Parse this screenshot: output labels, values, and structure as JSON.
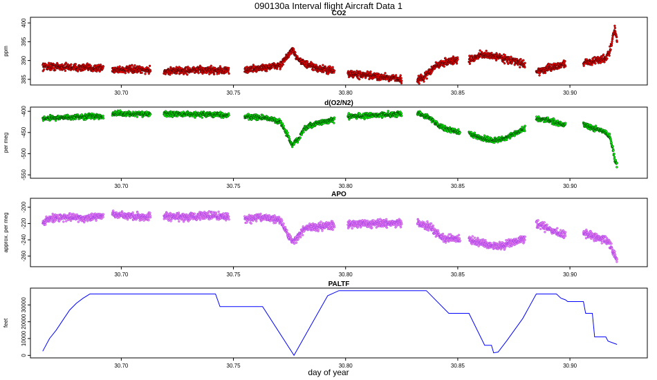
{
  "title": "090130a   Interval flight Aircraft Data 1",
  "xlabel": "day of year",
  "chart_data": [
    {
      "type": "scatter",
      "title": "CO2",
      "ylabel": "ppm",
      "xlim": [
        30.6595,
        30.9345
      ],
      "ylim": [
        383.5,
        401.5
      ],
      "xticks": [
        "30.70",
        "30.75",
        "30.80",
        "30.85",
        "30.90"
      ],
      "yticks": [
        "385",
        "390",
        "395",
        "400"
      ],
      "fill_color": "#ff0000",
      "edge_color": "#000000",
      "noise": 0.8,
      "segments": [
        {
          "x": [
            30.665,
            30.668,
            30.675,
            30.685,
            30.692
          ],
          "y": [
            388.5,
            388.4,
            388.3,
            388.0,
            388.0
          ]
        },
        {
          "x": [
            30.696,
            30.705,
            30.713
          ],
          "y": [
            387.6,
            387.6,
            387.4
          ]
        },
        {
          "x": [
            30.719,
            30.73,
            30.74,
            30.748
          ],
          "y": [
            387.2,
            387.4,
            387.5,
            387.3
          ]
        },
        {
          "x": [
            30.755,
            30.765,
            30.771,
            30.774,
            30.776,
            30.779,
            30.782,
            30.787,
            30.795
          ],
          "y": [
            387.5,
            388.2,
            388.8,
            391.0,
            392.8,
            390.5,
            389.0,
            388.0,
            387.2
          ]
        },
        {
          "x": [
            30.801,
            30.81,
            30.82,
            30.825
          ],
          "y": [
            386.5,
            386.0,
            385.5,
            385.0
          ]
        },
        {
          "x": [
            30.832,
            30.835,
            30.84,
            30.845,
            30.85
          ],
          "y": [
            384.8,
            385.5,
            388.5,
            389.7,
            390.2
          ]
        },
        {
          "x": [
            30.855,
            30.86,
            30.867,
            30.873,
            30.88
          ],
          "y": [
            390.0,
            391.5,
            391.2,
            390.2,
            389.0
          ]
        },
        {
          "x": [
            30.885,
            30.89,
            30.898
          ],
          "y": [
            387.0,
            387.8,
            389.2
          ]
        },
        {
          "x": [
            30.906,
            30.912,
            30.916,
            30.918,
            30.919,
            30.92,
            30.921
          ],
          "y": [
            389.4,
            390.0,
            390.8,
            392.8,
            396.0,
            398.5,
            395.0
          ]
        }
      ]
    },
    {
      "type": "scatter",
      "title": "d(O2/N2)",
      "ylabel": "per meg",
      "xlim": [
        30.6595,
        30.9345
      ],
      "ylim": [
        -558,
        -390
      ],
      "xticks": [
        "30.70",
        "30.75",
        "30.80",
        "30.85",
        "30.90"
      ],
      "yticks": [
        "-400",
        "-450",
        "-500",
        "-550"
      ],
      "fill_color": "#00ff00",
      "edge_color": "#000000",
      "noise": 5,
      "segments": [
        {
          "x": [
            30.665,
            30.668,
            30.675,
            30.685,
            30.692
          ],
          "y": [
            -418,
            -415,
            -415,
            -412,
            -411
          ]
        },
        {
          "x": [
            30.696,
            30.705,
            30.713
          ],
          "y": [
            -406,
            -406,
            -407
          ]
        },
        {
          "x": [
            30.719,
            30.73,
            30.74,
            30.748
          ],
          "y": [
            -406,
            -407,
            -407,
            -409
          ]
        },
        {
          "x": [
            30.755,
            30.765,
            30.771,
            30.774,
            30.776,
            30.779,
            30.782,
            30.787,
            30.795
          ],
          "y": [
            -412,
            -416,
            -425,
            -455,
            -480,
            -465,
            -440,
            -428,
            -420
          ]
        },
        {
          "x": [
            30.801,
            30.81,
            30.82,
            30.825
          ],
          "y": [
            -412,
            -410,
            -407,
            -406
          ]
        },
        {
          "x": [
            30.832,
            30.838,
            30.843,
            30.848,
            30.851
          ],
          "y": [
            -402,
            -418,
            -438,
            -446,
            -450
          ]
        },
        {
          "x": [
            30.855,
            30.86,
            30.865,
            30.87,
            30.875,
            30.88
          ],
          "y": [
            -452,
            -462,
            -468,
            -466,
            -455,
            -440
          ]
        },
        {
          "x": [
            30.885,
            30.89,
            30.895,
            30.898
          ],
          "y": [
            -418,
            -420,
            -428,
            -432
          ]
        },
        {
          "x": [
            30.906,
            30.912,
            30.916,
            30.918,
            30.919,
            30.92,
            30.921
          ],
          "y": [
            -432,
            -442,
            -450,
            -462,
            -485,
            -515,
            -528
          ]
        }
      ]
    },
    {
      "type": "scatter",
      "title": "APO",
      "ylabel": "approx. per meg",
      "xlim": [
        30.6595,
        30.9345
      ],
      "ylim": [
        -273,
        -189
      ],
      "xticks": [
        "30.70",
        "30.75",
        "30.80",
        "30.85",
        "30.90"
      ],
      "yticks": [
        "-200",
        "-220",
        "-240",
        "-260"
      ],
      "fill_color": "#ee82ee",
      "edge_color": "#8a2be2",
      "noise": 4,
      "segments": [
        {
          "x": [
            30.665,
            30.668,
            30.675,
            30.685,
            30.692
          ],
          "y": [
            -218,
            -214,
            -212,
            -213,
            -210
          ]
        },
        {
          "x": [
            30.696,
            30.705,
            30.713
          ],
          "y": [
            -209,
            -211,
            -212
          ]
        },
        {
          "x": [
            30.719,
            30.73,
            30.74,
            30.748
          ],
          "y": [
            -212,
            -212,
            -210,
            -212
          ]
        },
        {
          "x": [
            30.755,
            30.765,
            30.771,
            30.774,
            30.776,
            30.779,
            30.782,
            30.787,
            30.795
          ],
          "y": [
            -214,
            -212,
            -216,
            -232,
            -242,
            -236,
            -226,
            -224,
            -222
          ]
        },
        {
          "x": [
            30.801,
            30.81,
            30.82,
            30.825
          ],
          "y": [
            -220,
            -220,
            -220,
            -219
          ]
        },
        {
          "x": [
            30.832,
            30.838,
            30.843,
            30.848,
            30.851
          ],
          "y": [
            -218,
            -225,
            -238,
            -238,
            -240
          ]
        },
        {
          "x": [
            30.855,
            30.86,
            30.865,
            30.87,
            30.875,
            30.88
          ],
          "y": [
            -240,
            -244,
            -248,
            -247,
            -242,
            -238
          ]
        },
        {
          "x": [
            30.885,
            30.89,
            30.895,
            30.898
          ],
          "y": [
            -220,
            -226,
            -232,
            -234
          ]
        },
        {
          "x": [
            30.906,
            30.912,
            30.916,
            30.918,
            30.919,
            30.92,
            30.921
          ],
          "y": [
            -232,
            -236,
            -240,
            -246,
            -254,
            -258,
            -265
          ]
        }
      ]
    },
    {
      "type": "line",
      "title": "PALTF",
      "ylabel": "feet",
      "xlim": [
        30.6595,
        30.9345
      ],
      "ylim": [
        -1500,
        40000
      ],
      "xticks": [
        "30.70",
        "30.75",
        "30.80",
        "30.85",
        "30.90"
      ],
      "yticks": [
        "0",
        "10000",
        "20000",
        "30000"
      ],
      "line_color": "#0000ff",
      "x": [
        30.665,
        30.668,
        30.671,
        30.674,
        30.677,
        30.68,
        30.683,
        30.686,
        30.742,
        30.744,
        30.763,
        30.777,
        30.792,
        30.797,
        30.801,
        30.836,
        30.846,
        30.855,
        30.862,
        30.865,
        30.866,
        30.868,
        30.872,
        30.879,
        30.885,
        30.894,
        30.896,
        30.898,
        30.899,
        30.906,
        30.907,
        30.91,
        30.911,
        30.916,
        30.917,
        30.921
      ],
      "y": [
        2500,
        10000,
        15000,
        21000,
        27000,
        31000,
        34000,
        36500,
        36500,
        29000,
        29000,
        0,
        35500,
        38500,
        38500,
        38500,
        25000,
        25000,
        6000,
        6000,
        1500,
        2000,
        9000,
        22000,
        36500,
        36500,
        34000,
        33000,
        32000,
        32000,
        25000,
        25000,
        11000,
        11000,
        8500,
        6500
      ]
    }
  ]
}
